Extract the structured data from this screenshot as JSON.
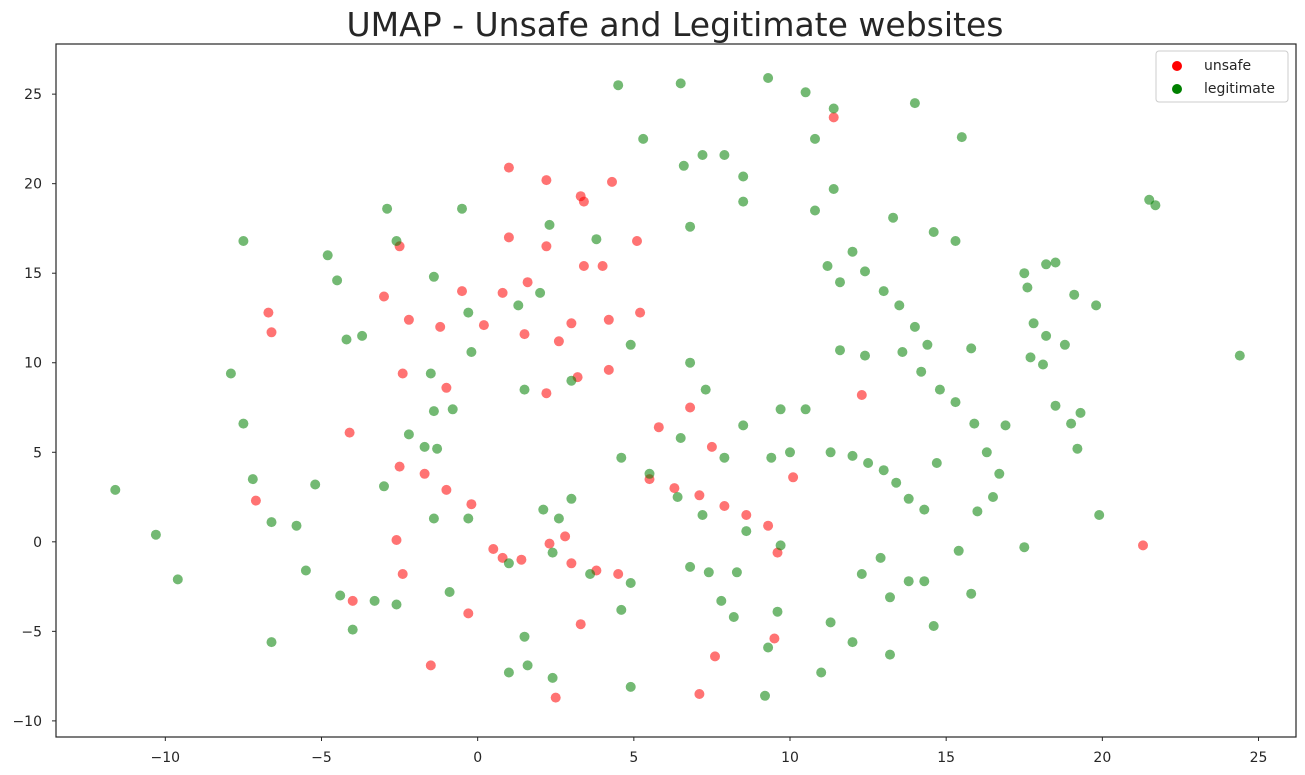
{
  "chart_data": {
    "type": "scatter",
    "title": "UMAP - Unsafe and Legitimate websites",
    "xlabel": "",
    "ylabel": "",
    "xlim": [
      -13.5,
      26.2
    ],
    "ylim": [
      -10.9,
      27.8
    ],
    "xticks": [
      -10,
      -5,
      0,
      5,
      10,
      15,
      20,
      25
    ],
    "yticks": [
      -10,
      -5,
      0,
      5,
      10,
      15,
      20,
      25
    ],
    "xtick_labels": [
      "−10",
      "−5",
      "0",
      "5",
      "10",
      "15",
      "20",
      "25"
    ],
    "ytick_labels": [
      "−10",
      "−5",
      "0",
      "5",
      "10",
      "15",
      "20",
      "25"
    ],
    "grid": false,
    "legend": {
      "position": "top-right"
    },
    "series": [
      {
        "name": "unsafe",
        "color": "#ff0000",
        "points": [
          [
            1.0,
            17.0
          ],
          [
            2.2,
            16.5
          ],
          [
            3.4,
            15.4
          ],
          [
            -0.5,
            14.0
          ],
          [
            0.8,
            13.9
          ],
          [
            1.6,
            14.5
          ],
          [
            -1.2,
            12.0
          ],
          [
            0.2,
            12.1
          ],
          [
            1.5,
            11.6
          ],
          [
            2.6,
            11.2
          ],
          [
            3.0,
            12.2
          ],
          [
            4.2,
            12.4
          ],
          [
            5.2,
            12.8
          ],
          [
            -3.0,
            13.7
          ],
          [
            -2.2,
            12.4
          ],
          [
            -2.4,
            9.4
          ],
          [
            -1.0,
            8.6
          ],
          [
            3.2,
            9.2
          ],
          [
            4.2,
            9.6
          ],
          [
            2.2,
            8.3
          ],
          [
            1.0,
            20.9
          ],
          [
            2.2,
            20.2
          ],
          [
            3.3,
            19.3
          ],
          [
            4.3,
            20.1
          ],
          [
            5.1,
            16.8
          ],
          [
            -6.7,
            12.8
          ],
          [
            -6.6,
            11.7
          ],
          [
            -7.1,
            2.3
          ],
          [
            -1.7,
            3.8
          ],
          [
            -1.0,
            2.9
          ],
          [
            -0.2,
            2.1
          ],
          [
            -2.5,
            4.2
          ],
          [
            -4.1,
            6.1
          ],
          [
            -1.5,
            -6.9
          ],
          [
            0.5,
            -0.4
          ],
          [
            1.4,
            -1.0
          ],
          [
            2.3,
            -0.1
          ],
          [
            3.0,
            -1.2
          ],
          [
            3.8,
            -1.6
          ],
          [
            4.5,
            -1.8
          ],
          [
            0.8,
            -0.9
          ],
          [
            2.8,
            0.3
          ],
          [
            -0.3,
            -4.0
          ],
          [
            3.3,
            -4.6
          ],
          [
            2.5,
            -8.7
          ],
          [
            7.1,
            -8.5
          ],
          [
            9.5,
            -5.4
          ],
          [
            7.6,
            -6.4
          ],
          [
            5.8,
            6.4
          ],
          [
            6.8,
            7.5
          ],
          [
            7.5,
            5.3
          ],
          [
            5.5,
            3.5
          ],
          [
            6.3,
            3.0
          ],
          [
            7.1,
            2.6
          ],
          [
            7.9,
            2.0
          ],
          [
            8.6,
            1.5
          ],
          [
            9.3,
            0.9
          ],
          [
            9.6,
            -0.6
          ],
          [
            4.0,
            15.4
          ],
          [
            3.4,
            19.0
          ],
          [
            11.4,
            23.7
          ],
          [
            21.3,
            -0.2
          ],
          [
            12.3,
            8.2
          ],
          [
            10.1,
            3.6
          ],
          [
            -2.6,
            0.1
          ],
          [
            -2.4,
            -1.8
          ],
          [
            -4.0,
            -3.3
          ],
          [
            -2.5,
            16.5
          ]
        ]
      },
      {
        "name": "legitimate",
        "color": "#008000",
        "points": [
          [
            -11.6,
            2.9
          ],
          [
            -10.3,
            0.4
          ],
          [
            -9.6,
            -2.1
          ],
          [
            -7.9,
            9.4
          ],
          [
            -7.5,
            16.8
          ],
          [
            -7.5,
            6.6
          ],
          [
            -7.2,
            3.5
          ],
          [
            -6.6,
            1.1
          ],
          [
            -6.6,
            -5.6
          ],
          [
            -5.8,
            0.9
          ],
          [
            -5.2,
            3.2
          ],
          [
            -5.5,
            -1.6
          ],
          [
            -4.4,
            -3.0
          ],
          [
            -4.0,
            -4.9
          ],
          [
            -3.3,
            -3.3
          ],
          [
            -2.6,
            -3.5
          ],
          [
            -4.8,
            16.0
          ],
          [
            -4.5,
            14.6
          ],
          [
            -3.0,
            3.1
          ],
          [
            -2.9,
            18.6
          ],
          [
            -2.6,
            16.8
          ],
          [
            -2.2,
            6.0
          ],
          [
            -1.7,
            5.3
          ],
          [
            -1.3,
            5.2
          ],
          [
            -1.5,
            9.4
          ],
          [
            -1.4,
            7.3
          ],
          [
            -0.5,
            18.6
          ],
          [
            -0.9,
            -2.8
          ],
          [
            -0.2,
            10.6
          ],
          [
            -0.3,
            1.3
          ],
          [
            1.5,
            -5.3
          ],
          [
            1.0,
            -7.3
          ],
          [
            1.6,
            -6.9
          ],
          [
            2.4,
            -7.6
          ],
          [
            2.3,
            17.7
          ],
          [
            3.8,
            16.9
          ],
          [
            4.5,
            25.5
          ],
          [
            5.3,
            22.5
          ],
          [
            4.9,
            -8.1
          ],
          [
            4.6,
            -3.8
          ],
          [
            4.9,
            -2.3
          ],
          [
            4.9,
            11.0
          ],
          [
            6.5,
            25.6
          ],
          [
            6.6,
            21.0
          ],
          [
            7.2,
            21.6
          ],
          [
            7.9,
            21.6
          ],
          [
            6.8,
            17.6
          ],
          [
            6.8,
            10.0
          ],
          [
            7.3,
            8.5
          ],
          [
            6.8,
            -1.4
          ],
          [
            7.4,
            -1.7
          ],
          [
            8.3,
            -1.7
          ],
          [
            7.8,
            -3.3
          ],
          [
            8.2,
            -4.2
          ],
          [
            9.6,
            -3.9
          ],
          [
            9.3,
            -5.9
          ],
          [
            9.2,
            -8.6
          ],
          [
            8.5,
            20.4
          ],
          [
            8.5,
            19.0
          ],
          [
            9.3,
            25.9
          ],
          [
            10.5,
            25.1
          ],
          [
            11.4,
            24.2
          ],
          [
            10.8,
            22.5
          ],
          [
            10.8,
            18.5
          ],
          [
            11.4,
            19.7
          ],
          [
            11.0,
            -7.3
          ],
          [
            11.3,
            -4.5
          ],
          [
            12.0,
            -5.6
          ],
          [
            12.3,
            -1.8
          ],
          [
            13.2,
            -3.1
          ],
          [
            12.9,
            -0.9
          ],
          [
            13.8,
            -2.2
          ],
          [
            14.3,
            -2.2
          ],
          [
            14.6,
            -4.7
          ],
          [
            13.2,
            -6.3
          ],
          [
            14.0,
            24.5
          ],
          [
            15.5,
            22.6
          ],
          [
            14.6,
            17.3
          ],
          [
            15.3,
            16.8
          ],
          [
            13.3,
            18.1
          ],
          [
            12.0,
            16.2
          ],
          [
            11.2,
            15.4
          ],
          [
            11.6,
            14.5
          ],
          [
            12.4,
            15.1
          ],
          [
            13.0,
            14.0
          ],
          [
            13.5,
            13.2
          ],
          [
            14.0,
            12.0
          ],
          [
            13.6,
            10.6
          ],
          [
            14.2,
            9.5
          ],
          [
            14.8,
            8.5
          ],
          [
            15.3,
            7.8
          ],
          [
            15.9,
            6.6
          ],
          [
            16.3,
            5.0
          ],
          [
            16.7,
            3.8
          ],
          [
            16.5,
            2.5
          ],
          [
            16.0,
            1.7
          ],
          [
            14.4,
            11.0
          ],
          [
            15.8,
            10.8
          ],
          [
            16.9,
            6.5
          ],
          [
            11.6,
            10.7
          ],
          [
            12.4,
            10.4
          ],
          [
            11.3,
            5.0
          ],
          [
            12.0,
            4.8
          ],
          [
            12.5,
            4.4
          ],
          [
            13.0,
            4.0
          ],
          [
            13.4,
            3.3
          ],
          [
            13.8,
            2.4
          ],
          [
            14.3,
            1.8
          ],
          [
            14.7,
            4.4
          ],
          [
            15.4,
            -0.5
          ],
          [
            15.8,
            -2.9
          ],
          [
            17.5,
            15.0
          ],
          [
            17.6,
            14.2
          ],
          [
            18.2,
            15.5
          ],
          [
            18.5,
            15.6
          ],
          [
            17.8,
            12.2
          ],
          [
            18.2,
            11.5
          ],
          [
            18.8,
            11.0
          ],
          [
            19.1,
            13.8
          ],
          [
            19.8,
            13.2
          ],
          [
            17.7,
            10.3
          ],
          [
            18.1,
            9.9
          ],
          [
            18.5,
            7.6
          ],
          [
            19.0,
            6.6
          ],
          [
            19.3,
            7.2
          ],
          [
            19.2,
            5.2
          ],
          [
            19.9,
            1.5
          ],
          [
            17.5,
            -0.3
          ],
          [
            21.5,
            19.1
          ],
          [
            21.7,
            18.8
          ],
          [
            24.4,
            10.4
          ],
          [
            10.0,
            5.0
          ],
          [
            9.4,
            4.7
          ],
          [
            9.7,
            7.4
          ],
          [
            10.5,
            7.4
          ],
          [
            8.5,
            6.5
          ],
          [
            7.9,
            4.7
          ],
          [
            5.5,
            3.8
          ],
          [
            6.4,
            2.5
          ],
          [
            7.2,
            1.5
          ],
          [
            8.6,
            0.6
          ],
          [
            9.7,
            -0.2
          ],
          [
            6.5,
            5.8
          ],
          [
            4.6,
            4.7
          ],
          [
            1.0,
            -1.2
          ],
          [
            2.4,
            -0.6
          ],
          [
            3.6,
            -1.8
          ],
          [
            1.3,
            13.2
          ],
          [
            2.0,
            13.9
          ],
          [
            3.0,
            9.0
          ],
          [
            1.5,
            8.5
          ],
          [
            2.6,
            1.3
          ],
          [
            2.1,
            1.8
          ],
          [
            3.0,
            2.4
          ],
          [
            -1.4,
            1.3
          ],
          [
            -1.4,
            14.8
          ],
          [
            -0.3,
            12.8
          ],
          [
            -0.8,
            7.4
          ],
          [
            -3.7,
            11.5
          ],
          [
            -4.2,
            11.3
          ]
        ]
      }
    ]
  }
}
